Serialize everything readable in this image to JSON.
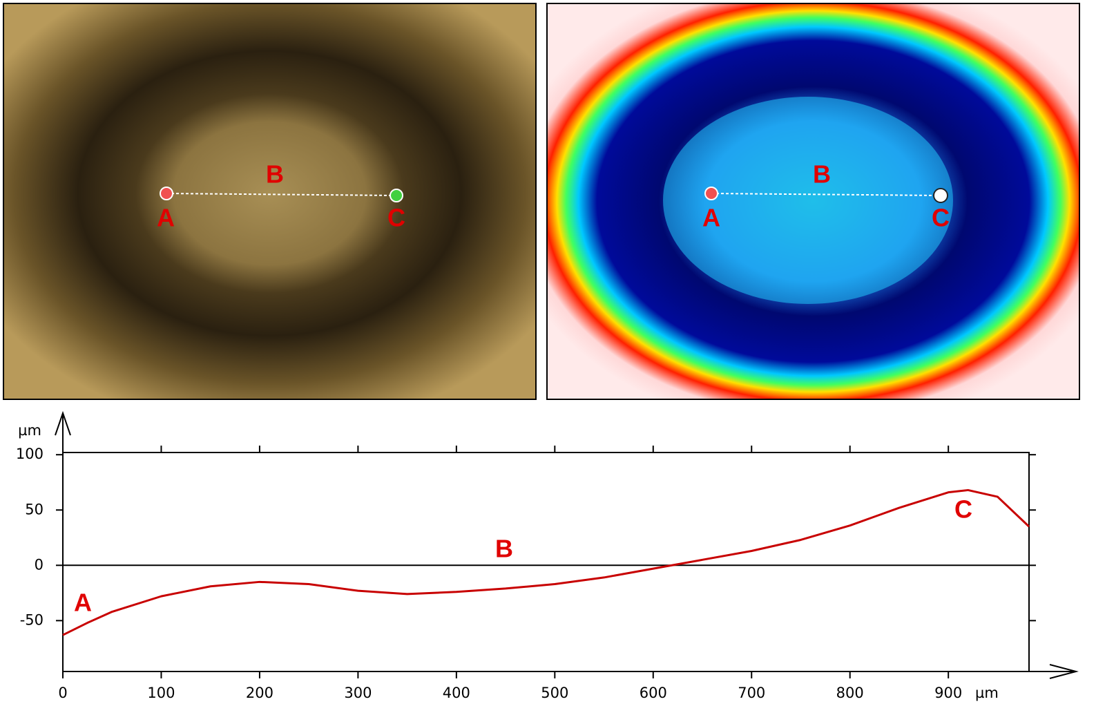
{
  "photo": {
    "labels": [
      "A",
      "B",
      "C"
    ]
  },
  "height_map": {
    "labels": [
      "A",
      "B",
      "C"
    ]
  },
  "chart_data": {
    "type": "line",
    "y_label": "µm",
    "x_label": "µm",
    "x": [
      0,
      25,
      50,
      100,
      150,
      200,
      250,
      300,
      350,
      400,
      450,
      500,
      550,
      600,
      650,
      700,
      750,
      800,
      850,
      900,
      920,
      950,
      982
    ],
    "series": [
      {
        "color": "#c80000",
        "values": [
          -63,
          -52,
          -42,
          -28,
          -19,
          -15,
          -17,
          -23,
          -26,
          -24,
          -21,
          -17,
          -11,
          -3,
          5,
          13,
          23,
          36,
          52,
          66,
          68,
          62,
          35
        ]
      }
    ],
    "xlim": [
      0,
      982
    ],
    "ylim": [
      -96,
      102
    ],
    "xticks": [
      0,
      100,
      200,
      300,
      400,
      500,
      600,
      700,
      800,
      900
    ],
    "yticks": [
      -50,
      0,
      50,
      100
    ],
    "annotations": [
      "A",
      "B",
      "C"
    ]
  }
}
